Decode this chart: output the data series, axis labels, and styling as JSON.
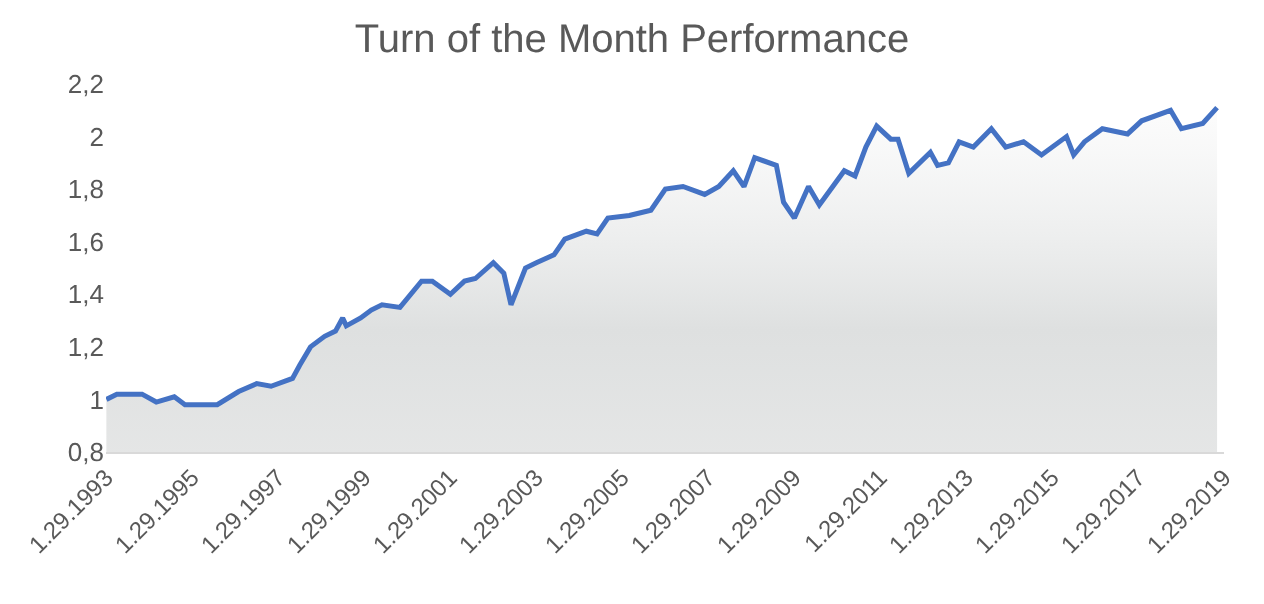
{
  "chart_data": {
    "type": "area",
    "title": "Turn of the Month Performance",
    "x": [
      "1993-02",
      "1993-05",
      "1993-12",
      "1994-04",
      "1994-09",
      "1994-12",
      "1995-09",
      "1996-03",
      "1996-08",
      "1996-12",
      "1997-06",
      "1997-08",
      "1997-11",
      "1998-03",
      "1998-06",
      "1998-08",
      "1998-09",
      "1999-01",
      "1999-04",
      "1999-07",
      "1999-12",
      "2000-06",
      "2000-09",
      "2001-02",
      "2001-06",
      "2001-09",
      "2002-02",
      "2002-05",
      "2002-07",
      "2002-11",
      "2003-02",
      "2003-07",
      "2003-10",
      "2004-04",
      "2004-07",
      "2004-10",
      "2005-04",
      "2005-10",
      "2006-02",
      "2006-07",
      "2007-01",
      "2007-05",
      "2007-09",
      "2007-12",
      "2008-03",
      "2008-09",
      "2008-11",
      "2009-02",
      "2009-06",
      "2009-09",
      "2010-04",
      "2010-07",
      "2010-10",
      "2011-01",
      "2011-05",
      "2011-07",
      "2011-10",
      "2012-04",
      "2012-06",
      "2012-09",
      "2012-12",
      "2013-04",
      "2013-09",
      "2014-01",
      "2014-06",
      "2014-11",
      "2015-06",
      "2015-08",
      "2015-11",
      "2016-04",
      "2016-11",
      "2017-03",
      "2017-11",
      "2018-02",
      "2018-08",
      "2018-12"
    ],
    "series": [
      {
        "color": "#4472c4",
        "values": [
          1.0,
          1.02,
          1.02,
          0.99,
          1.01,
          0.98,
          0.98,
          1.03,
          1.06,
          1.05,
          1.08,
          1.13,
          1.2,
          1.24,
          1.26,
          1.31,
          1.28,
          1.31,
          1.34,
          1.36,
          1.35,
          1.45,
          1.45,
          1.4,
          1.45,
          1.46,
          1.52,
          1.48,
          1.36,
          1.5,
          1.52,
          1.55,
          1.61,
          1.64,
          1.63,
          1.69,
          1.7,
          1.72,
          1.8,
          1.81,
          1.78,
          1.81,
          1.87,
          1.81,
          1.92,
          1.89,
          1.75,
          1.69,
          1.81,
          1.74,
          1.87,
          1.85,
          1.96,
          2.04,
          1.99,
          1.99,
          1.86,
          1.94,
          1.89,
          1.9,
          1.98,
          1.96,
          2.03,
          1.96,
          1.98,
          1.93,
          2.0,
          1.93,
          1.98,
          2.03,
          2.01,
          2.06,
          2.1,
          2.03,
          2.05,
          2.11
        ]
      }
    ],
    "xlim": [
      "1993-01-29",
      "2019-01-29"
    ],
    "xticks": [
      {
        "value": "1993-01-29",
        "label": "1.29.1993"
      },
      {
        "value": "1995-01-29",
        "label": "1.29.1995"
      },
      {
        "value": "1997-01-29",
        "label": "1.29.1997"
      },
      {
        "value": "1999-01-29",
        "label": "1.29.1999"
      },
      {
        "value": "2001-01-29",
        "label": "1.29.2001"
      },
      {
        "value": "2003-01-29",
        "label": "1.29.2003"
      },
      {
        "value": "2005-01-29",
        "label": "1.29.2005"
      },
      {
        "value": "2007-01-29",
        "label": "1.29.2007"
      },
      {
        "value": "2009-01-29",
        "label": "1.29.2009"
      },
      {
        "value": "2011-01-29",
        "label": "1.29.2011"
      },
      {
        "value": "2013-01-29",
        "label": "1.29.2013"
      },
      {
        "value": "2015-01-29",
        "label": "1.29.2015"
      },
      {
        "value": "2017-01-29",
        "label": "1.29.2017"
      },
      {
        "value": "2019-01-29",
        "label": "1.29.2019"
      }
    ],
    "ylim": [
      0.8,
      2.2
    ],
    "yticks": [
      {
        "value": 0.8,
        "label": "0,8"
      },
      1,
      {
        "value": 1.2,
        "label": "1,2"
      },
      {
        "value": 1.4,
        "label": "1,4"
      },
      {
        "value": 1.6,
        "label": "1,6"
      },
      {
        "value": 1.8,
        "label": "1,8"
      },
      2,
      {
        "value": 2.2,
        "label": "2,2"
      }
    ],
    "grid": false
  }
}
